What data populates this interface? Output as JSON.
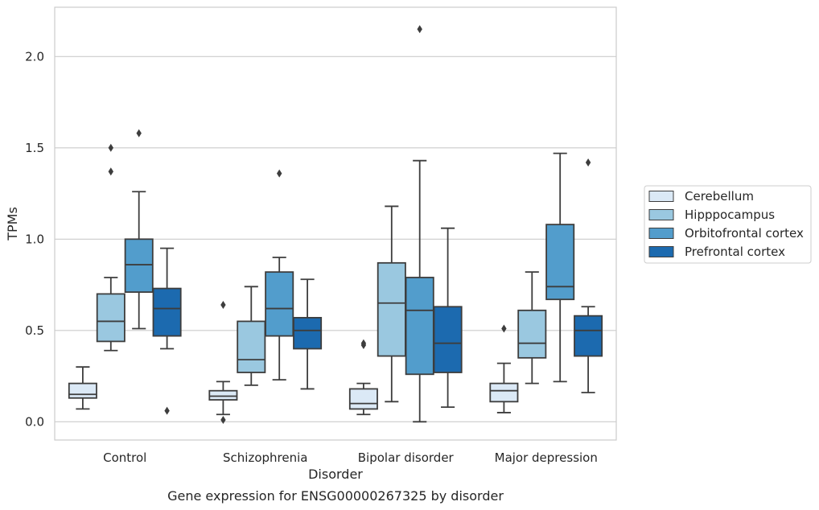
{
  "caption": "Gene expression for ENSG00000267325 by disorder",
  "chart_data": {
    "type": "box",
    "xlabel": "Disorder",
    "ylabel": "TPMs",
    "ylim": [
      -0.1,
      2.27
    ],
    "yticks": [
      0.0,
      0.5,
      1.0,
      1.5,
      2.0
    ],
    "ytick_labels": [
      "0.0",
      "0.5",
      "1.0",
      "1.5",
      "2.0"
    ],
    "grid": "horizontal",
    "legend_position": "right",
    "categories": [
      "Control",
      "Schizophrenia",
      "Bipolar disorder",
      "Major depression"
    ],
    "series": [
      {
        "name": "Cerebellum",
        "color": "#dbe9f6",
        "boxes": [
          {
            "whislo": 0.07,
            "q1": 0.13,
            "med": 0.15,
            "q3": 0.21,
            "whishi": 0.3,
            "fliers": []
          },
          {
            "whislo": 0.04,
            "q1": 0.12,
            "med": 0.14,
            "q3": 0.17,
            "whishi": 0.22,
            "fliers": [
              0.01,
              0.64
            ]
          },
          {
            "whislo": 0.04,
            "q1": 0.07,
            "med": 0.1,
            "q3": 0.18,
            "whishi": 0.21,
            "fliers": [
              0.42,
              0.43
            ]
          },
          {
            "whislo": 0.05,
            "q1": 0.11,
            "med": 0.17,
            "q3": 0.21,
            "whishi": 0.32,
            "fliers": [
              0.51
            ]
          }
        ]
      },
      {
        "name": "Hipppocampus",
        "color": "#9ac8e0",
        "boxes": [
          {
            "whislo": 0.39,
            "q1": 0.44,
            "med": 0.55,
            "q3": 0.7,
            "whishi": 0.79,
            "fliers": [
              1.37,
              1.5
            ]
          },
          {
            "whislo": 0.2,
            "q1": 0.27,
            "med": 0.34,
            "q3": 0.55,
            "whishi": 0.74,
            "fliers": []
          },
          {
            "whislo": 0.11,
            "q1": 0.36,
            "med": 0.65,
            "q3": 0.87,
            "whishi": 1.18,
            "fliers": []
          },
          {
            "whislo": 0.21,
            "q1": 0.35,
            "med": 0.43,
            "q3": 0.61,
            "whishi": 0.82,
            "fliers": []
          }
        ]
      },
      {
        "name": "Orbitofrontal cortex",
        "color": "#529dcc",
        "boxes": [
          {
            "whislo": 0.51,
            "q1": 0.71,
            "med": 0.86,
            "q3": 1.0,
            "whishi": 1.26,
            "fliers": [
              1.58
            ]
          },
          {
            "whislo": 0.23,
            "q1": 0.47,
            "med": 0.62,
            "q3": 0.82,
            "whishi": 0.9,
            "fliers": [
              1.36
            ]
          },
          {
            "whislo": 0.0,
            "q1": 0.26,
            "med": 0.61,
            "q3": 0.79,
            "whishi": 1.43,
            "fliers": [
              2.15
            ]
          },
          {
            "whislo": 0.22,
            "q1": 0.67,
            "med": 0.74,
            "q3": 1.08,
            "whishi": 1.47,
            "fliers": []
          }
        ]
      },
      {
        "name": "Prefrontal cortex",
        "color": "#1c6aaf",
        "boxes": [
          {
            "whislo": 0.4,
            "q1": 0.47,
            "med": 0.62,
            "q3": 0.73,
            "whishi": 0.95,
            "fliers": [
              0.06
            ]
          },
          {
            "whislo": 0.18,
            "q1": 0.4,
            "med": 0.5,
            "q3": 0.57,
            "whishi": 0.78,
            "fliers": []
          },
          {
            "whislo": 0.08,
            "q1": 0.27,
            "med": 0.43,
            "q3": 0.63,
            "whishi": 1.06,
            "fliers": []
          },
          {
            "whislo": 0.16,
            "q1": 0.36,
            "med": 0.5,
            "q3": 0.58,
            "whishi": 0.63,
            "fliers": [
              1.42
            ]
          }
        ]
      }
    ]
  }
}
